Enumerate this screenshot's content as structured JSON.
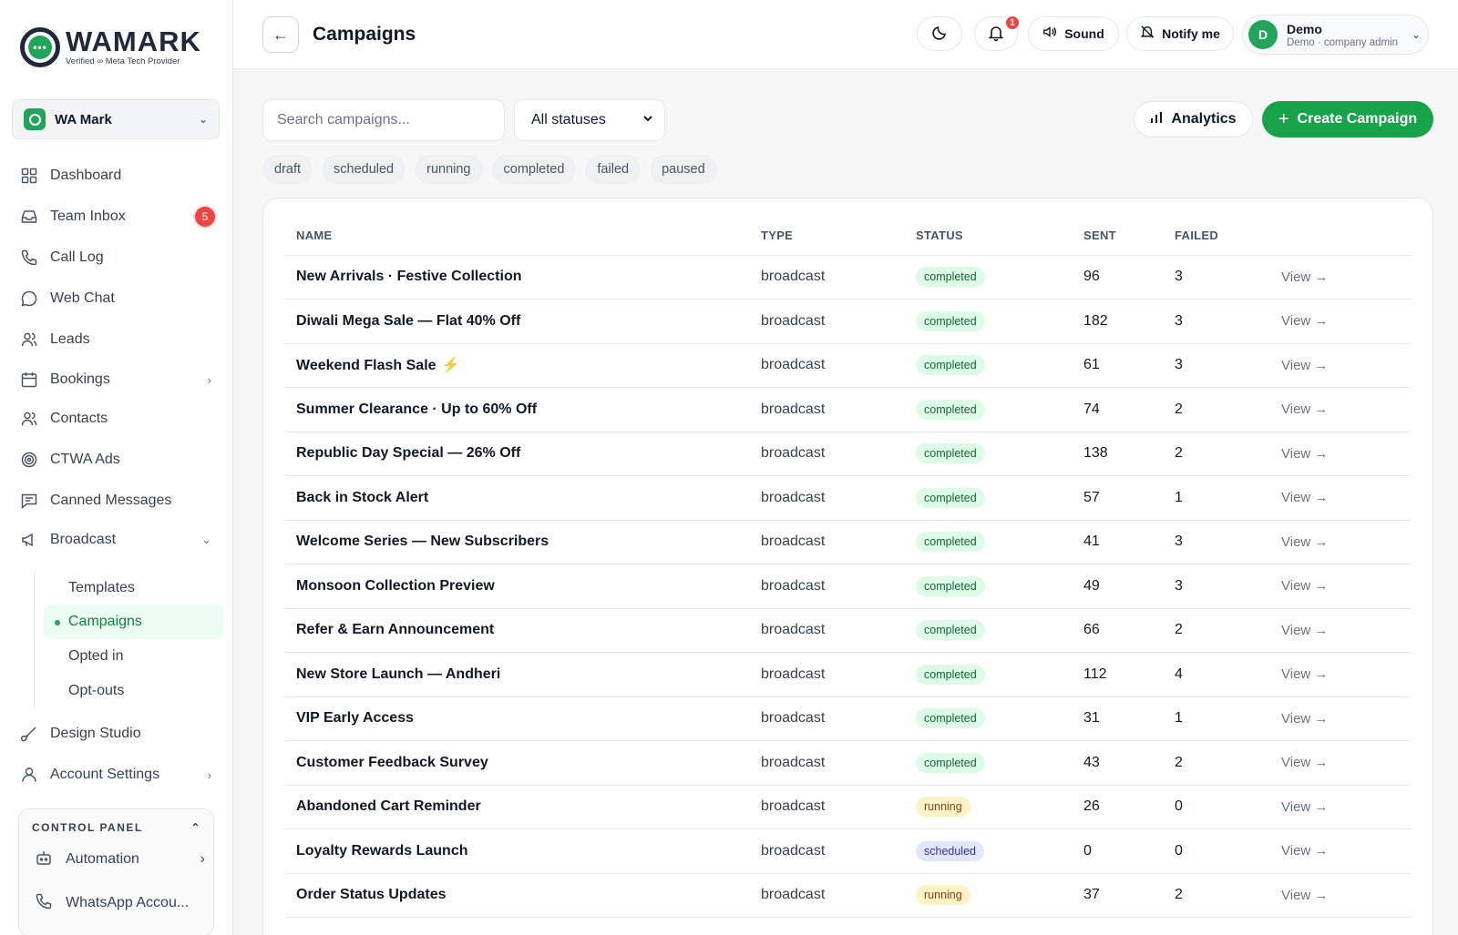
{
  "brand": {
    "name": "WAMARK",
    "subtitle": "Verified ∞ Meta Tech Provider",
    "logo_mark": "•••",
    "accent": "#22a55a"
  },
  "org": {
    "name": "WA Mark"
  },
  "sidebar": {
    "items": [
      {
        "label": "Dashboard",
        "icon": "grid-icon"
      },
      {
        "label": "Team Inbox",
        "icon": "inbox-icon",
        "badge": "5"
      },
      {
        "label": "Call Log",
        "icon": "phone-icon"
      },
      {
        "label": "Web Chat",
        "icon": "chat-icon"
      },
      {
        "label": "Leads",
        "icon": "users-icon"
      },
      {
        "label": "Bookings",
        "icon": "calendar-icon"
      },
      {
        "label": "Contacts",
        "icon": "contacts-icon"
      },
      {
        "label": "CTWA Ads",
        "icon": "target-icon"
      },
      {
        "label": "Canned Messages",
        "icon": "message-square-icon"
      },
      {
        "label": "Broadcast",
        "icon": "megaphone-icon"
      }
    ],
    "broadcast_sub": [
      {
        "label": "Templates"
      },
      {
        "label": "Campaigns"
      },
      {
        "label": "Opted in"
      },
      {
        "label": "Opt-outs"
      }
    ],
    "bottom_items": [
      {
        "label": "Design Studio",
        "icon": "brush-icon"
      },
      {
        "label": "Account Settings",
        "icon": "user-icon"
      }
    ],
    "control_panel": {
      "title": "CONTROL PANEL",
      "items": [
        {
          "label": "Automation",
          "icon": "bot-icon"
        },
        {
          "label": "WhatsApp Accou...",
          "icon": "phone-icon"
        }
      ]
    }
  },
  "header": {
    "title": "Campaigns",
    "notification_count": "1",
    "sound_label": "Sound",
    "notify_label": "Notify me",
    "user": {
      "initial": "D",
      "name": "Demo",
      "role": "Demo · company admin"
    }
  },
  "toolbar": {
    "search_placeholder": "Search campaigns...",
    "status_filter": "All statuses",
    "analytics_label": "Analytics",
    "create_label": "Create Campaign"
  },
  "status_chips": [
    "draft",
    "scheduled",
    "running",
    "completed",
    "failed",
    "paused"
  ],
  "table": {
    "columns": [
      "NAME",
      "TYPE",
      "STATUS",
      "SENT",
      "FAILED"
    ],
    "view_label": "View →",
    "rows": [
      {
        "name": "New Arrivals · Festive Collection",
        "type": "broadcast",
        "status": "completed",
        "sent": "96",
        "failed": "3"
      },
      {
        "name": "Diwali Mega Sale — Flat 40% Off",
        "type": "broadcast",
        "status": "completed",
        "sent": "182",
        "failed": "3"
      },
      {
        "name": "Weekend Flash Sale",
        "type": "broadcast",
        "status": "completed",
        "sent": "61",
        "failed": "3",
        "emoji": "⚡"
      },
      {
        "name": "Summer Clearance · Up to 60% Off",
        "type": "broadcast",
        "status": "completed",
        "sent": "74",
        "failed": "2"
      },
      {
        "name": "Republic Day Special — 26% Off",
        "type": "broadcast",
        "status": "completed",
        "sent": "138",
        "failed": "2"
      },
      {
        "name": "Back in Stock Alert",
        "type": "broadcast",
        "status": "completed",
        "sent": "57",
        "failed": "1"
      },
      {
        "name": "Welcome Series — New Subscribers",
        "type": "broadcast",
        "status": "completed",
        "sent": "41",
        "failed": "3"
      },
      {
        "name": "Monsoon Collection Preview",
        "type": "broadcast",
        "status": "completed",
        "sent": "49",
        "failed": "3"
      },
      {
        "name": "Refer & Earn Announcement",
        "type": "broadcast",
        "status": "completed",
        "sent": "66",
        "failed": "2"
      },
      {
        "name": "New Store Launch — Andheri",
        "type": "broadcast",
        "status": "completed",
        "sent": "112",
        "failed": "4"
      },
      {
        "name": "VIP Early Access",
        "type": "broadcast",
        "status": "completed",
        "sent": "31",
        "failed": "1"
      },
      {
        "name": "Customer Feedback Survey",
        "type": "broadcast",
        "status": "completed",
        "sent": "43",
        "failed": "2"
      },
      {
        "name": "Abandoned Cart Reminder",
        "type": "broadcast",
        "status": "running",
        "sent": "26",
        "failed": "0"
      },
      {
        "name": "Loyalty Rewards Launch",
        "type": "broadcast",
        "status": "scheduled",
        "sent": "0",
        "failed": "0"
      },
      {
        "name": "Order Status Updates",
        "type": "broadcast",
        "status": "running",
        "sent": "37",
        "failed": "2"
      }
    ]
  }
}
